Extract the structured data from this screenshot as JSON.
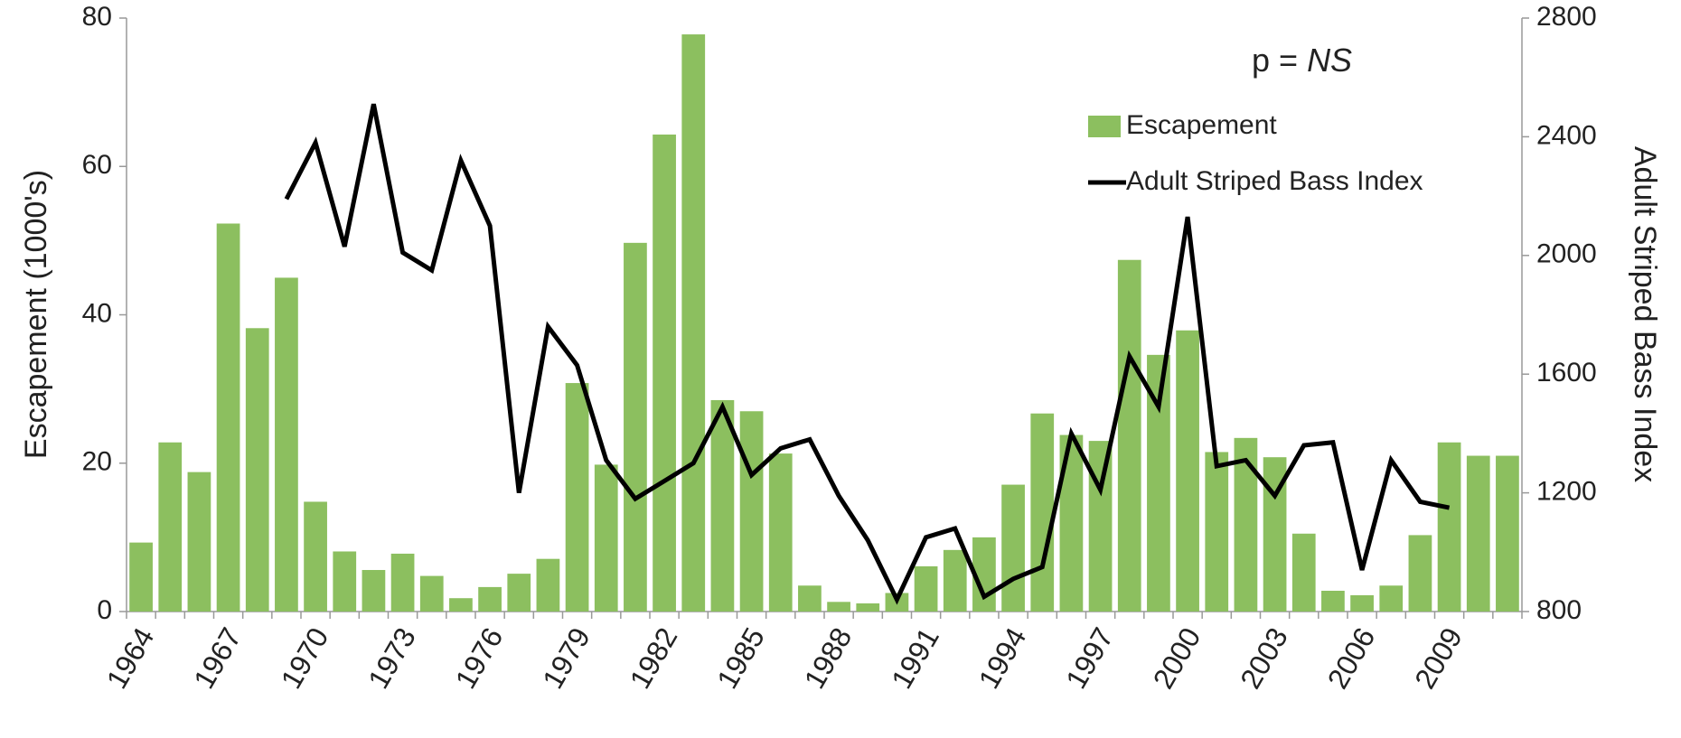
{
  "chart_data": {
    "type": "bar_line",
    "categories": [
      "1964",
      null,
      null,
      "1967",
      null,
      null,
      "1970",
      null,
      null,
      "1973",
      null,
      null,
      "1976",
      null,
      null,
      "1979",
      null,
      null,
      "1982",
      null,
      null,
      "1985",
      null,
      null,
      "1988",
      null,
      null,
      "1991",
      null,
      null,
      "1994",
      null,
      null,
      "1997",
      null,
      null,
      "2000",
      null,
      null,
      "2003",
      null,
      null,
      "2006",
      null,
      null,
      "2009",
      null,
      null
    ],
    "series": [
      {
        "name": "Escapement",
        "type": "bar",
        "color": "#8cbf5f",
        "axis": "y",
        "values": [
          9.3,
          22.8,
          18.8,
          52.3,
          38.2,
          45,
          14.8,
          8.1,
          5.6,
          7.8,
          4.8,
          1.8,
          3.3,
          5.1,
          7.1,
          30.8,
          19.8,
          49.7,
          64.3,
          77.8,
          28.5,
          27,
          21.3,
          3.5,
          1.3,
          1.1,
          2.5,
          6.1,
          8.3,
          10,
          17.1,
          26.7,
          23.8,
          23,
          47.4,
          34.6,
          37.9,
          21.5,
          23.4,
          20.8,
          10.5,
          2.8,
          2.2,
          3.5,
          10.3,
          22.8,
          21,
          21
        ]
      },
      {
        "name": "Adult Striped Bass Index",
        "type": "line",
        "color": "#000000",
        "axis": "y2",
        "values": [
          null,
          null,
          null,
          null,
          null,
          2190,
          2380,
          2030,
          2510,
          2010,
          1950,
          2320,
          2100,
          1200,
          1760,
          1630,
          1310,
          1180,
          1240,
          1300,
          1490,
          1260,
          1350,
          1380,
          1190,
          1040,
          840,
          1050,
          1080,
          850,
          910,
          950,
          1400,
          1210,
          1660,
          1490,
          2130,
          1290,
          1310,
          1190,
          1360,
          1370,
          940,
          1310,
          1170,
          1150,
          null,
          null
        ]
      }
    ],
    "y_label": "Escapement (1000's)",
    "y2_label": "Adult Striped Bass Index",
    "annotation": [
      "p = ",
      "NS"
    ],
    "ylim": [
      0,
      80
    ],
    "yticks": [
      0,
      20,
      40,
      60,
      80
    ],
    "y2lim": [
      800,
      2800
    ],
    "y2ticks": [
      800,
      1200,
      1600,
      2000,
      2400,
      2800
    ],
    "grid": false,
    "legend": "upper right"
  }
}
